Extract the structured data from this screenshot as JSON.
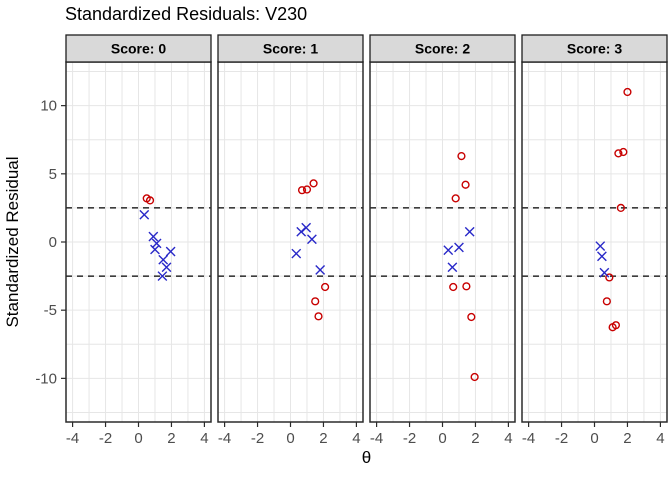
{
  "chart": {
    "title": "Standardized Residuals: V230",
    "ylabel": "Standardized Residual",
    "xlabel": "θ"
  },
  "chart_data": {
    "type": "scatter",
    "title": "Standardized Residuals: V230",
    "xlabel": "θ",
    "ylabel": "Standardized Residual",
    "xlim": [
      -4.4,
      4.4
    ],
    "ylim": [
      -13.2,
      13.2
    ],
    "x_ticks": [
      -4,
      -2,
      0,
      2,
      4
    ],
    "y_ticks": [
      10,
      5,
      0,
      -5,
      -10
    ],
    "grid": {
      "on": true,
      "x_step": 1,
      "y_step": 2.5
    },
    "reference_lines": [
      2.5,
      -2.5
    ],
    "legend": "none",
    "marker_legend": {
      "circle": "outlier residual (red open circle)",
      "cross": "in-range residual (blue x)"
    },
    "colors": {
      "circle": "#c80000",
      "cross": "#2828c8",
      "grid": "#e6e6e6",
      "panel_border": "#2b2b2b",
      "header_fill": "#d9d9d9",
      "header_border": "#1f1f1f",
      "tick_label": "#4d4d4d",
      "reference_line": "#000000",
      "background": "#ffffff"
    },
    "panels": [
      {
        "label": "Score: 0",
        "circles": [
          [
            0.5,
            3.2
          ],
          [
            0.7,
            3.05
          ]
        ],
        "crosses": [
          [
            0.35,
            2.0
          ],
          [
            0.9,
            0.4
          ],
          [
            1.1,
            -0.1
          ],
          [
            1.0,
            -0.55
          ],
          [
            1.95,
            -0.7
          ],
          [
            1.5,
            -1.3
          ],
          [
            1.7,
            -1.85
          ],
          [
            1.45,
            -2.5
          ]
        ]
      },
      {
        "label": "Score: 1",
        "circles": [
          [
            0.7,
            3.8
          ],
          [
            1.0,
            3.85
          ],
          [
            1.4,
            4.3
          ],
          [
            2.1,
            -3.3
          ],
          [
            1.5,
            -4.35
          ],
          [
            1.7,
            -5.45
          ]
        ],
        "crosses": [
          [
            0.65,
            0.75
          ],
          [
            0.95,
            1.05
          ],
          [
            1.3,
            0.2
          ],
          [
            0.35,
            -0.85
          ],
          [
            1.8,
            -2.05
          ]
        ]
      },
      {
        "label": "Score: 2",
        "circles": [
          [
            1.15,
            6.3
          ],
          [
            1.4,
            4.2
          ],
          [
            0.8,
            3.2
          ],
          [
            0.65,
            -3.3
          ],
          [
            1.45,
            -3.25
          ],
          [
            1.75,
            -5.5
          ],
          [
            1.95,
            -9.9
          ]
        ],
        "crosses": [
          [
            1.65,
            0.75
          ],
          [
            1.0,
            -0.4
          ],
          [
            0.35,
            -0.6
          ],
          [
            0.6,
            -1.85
          ]
        ]
      },
      {
        "label": "Score: 3",
        "circles": [
          [
            2.0,
            11.0
          ],
          [
            1.45,
            6.5
          ],
          [
            1.75,
            6.6
          ],
          [
            1.6,
            2.5
          ],
          [
            0.9,
            -2.6
          ],
          [
            0.75,
            -4.35
          ],
          [
            1.1,
            -6.25
          ],
          [
            1.3,
            -6.1
          ]
        ],
        "crosses": [
          [
            0.35,
            -0.3
          ],
          [
            0.45,
            -1.05
          ],
          [
            0.6,
            -2.25
          ]
        ]
      }
    ]
  }
}
